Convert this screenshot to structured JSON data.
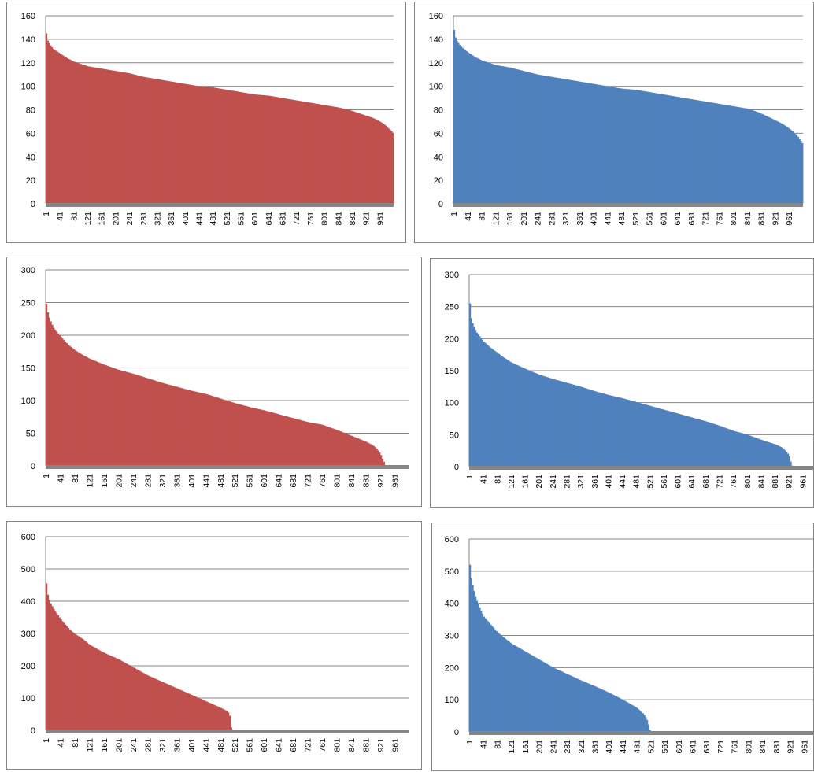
{
  "chart_data": [
    {
      "type": "bar",
      "color": "#c0504d",
      "x_tick_labels": [
        "1",
        "41",
        "81",
        "121",
        "161",
        "201",
        "241",
        "281",
        "321",
        "361",
        "401",
        "441",
        "481",
        "521",
        "561",
        "601",
        "641",
        "681",
        "721",
        "761",
        "801",
        "841",
        "881",
        "921",
        "961"
      ],
      "x_range": [
        1,
        1000
      ],
      "ylim": [
        0,
        160
      ],
      "y_ticks": [
        0,
        20,
        40,
        60,
        80,
        100,
        120,
        140,
        160
      ],
      "grid": true,
      "curve": [
        [
          1,
          145
        ],
        [
          3,
          140
        ],
        [
          10,
          136
        ],
        [
          20,
          132
        ],
        [
          40,
          128
        ],
        [
          60,
          124
        ],
        [
          80,
          121
        ],
        [
          120,
          117
        ],
        [
          160,
          115
        ],
        [
          200,
          113
        ],
        [
          240,
          111
        ],
        [
          280,
          108
        ],
        [
          320,
          106
        ],
        [
          360,
          104
        ],
        [
          400,
          102
        ],
        [
          440,
          100
        ],
        [
          480,
          99
        ],
        [
          520,
          97
        ],
        [
          560,
          95
        ],
        [
          600,
          93
        ],
        [
          640,
          92
        ],
        [
          680,
          90
        ],
        [
          720,
          88
        ],
        [
          760,
          86
        ],
        [
          800,
          84
        ],
        [
          840,
          82
        ],
        [
          870,
          80
        ],
        [
          900,
          77
        ],
        [
          920,
          75
        ],
        [
          940,
          73
        ],
        [
          960,
          70
        ],
        [
          975,
          67
        ],
        [
          985,
          64
        ],
        [
          992,
          62
        ],
        [
          998,
          60
        ],
        [
          1000,
          60
        ]
      ]
    },
    {
      "type": "bar",
      "color": "#4f81bd",
      "x_tick_labels": [
        "1",
        "41",
        "81",
        "121",
        "161",
        "201",
        "241",
        "281",
        "321",
        "361",
        "401",
        "441",
        "481",
        "521",
        "561",
        "601",
        "641",
        "681",
        "721",
        "761",
        "801",
        "841",
        "881",
        "921",
        "961"
      ],
      "x_range": [
        1,
        1000
      ],
      "ylim": [
        0,
        160
      ],
      "y_ticks": [
        0,
        20,
        40,
        60,
        80,
        100,
        120,
        140,
        160
      ],
      "grid": true,
      "curve": [
        [
          1,
          148
        ],
        [
          3,
          143
        ],
        [
          10,
          138
        ],
        [
          20,
          134
        ],
        [
          40,
          129
        ],
        [
          60,
          125
        ],
        [
          80,
          122
        ],
        [
          120,
          118
        ],
        [
          160,
          116
        ],
        [
          200,
          113
        ],
        [
          240,
          110
        ],
        [
          280,
          108
        ],
        [
          320,
          106
        ],
        [
          360,
          104
        ],
        [
          400,
          102
        ],
        [
          440,
          100
        ],
        [
          480,
          98
        ],
        [
          520,
          97
        ],
        [
          560,
          95
        ],
        [
          600,
          93
        ],
        [
          640,
          91
        ],
        [
          680,
          89
        ],
        [
          720,
          87
        ],
        [
          760,
          85
        ],
        [
          800,
          83
        ],
        [
          840,
          81
        ],
        [
          870,
          78
        ],
        [
          900,
          74
        ],
        [
          920,
          71
        ],
        [
          940,
          68
        ],
        [
          960,
          64
        ],
        [
          975,
          60
        ],
        [
          985,
          57
        ],
        [
          992,
          54
        ],
        [
          998,
          51
        ],
        [
          1000,
          51
        ]
      ]
    },
    {
      "type": "bar",
      "color": "#c0504d",
      "x_tick_labels": [
        "1",
        "41",
        "81",
        "121",
        "161",
        "201",
        "241",
        "281",
        "321",
        "361",
        "401",
        "441",
        "481",
        "521",
        "561",
        "601",
        "641",
        "681",
        "721",
        "761",
        "801",
        "841",
        "881",
        "921",
        "961"
      ],
      "x_range": [
        1,
        1000
      ],
      "ylim": [
        0,
        300
      ],
      "y_ticks": [
        0,
        50,
        100,
        150,
        200,
        250,
        300
      ],
      "grid": true,
      "curve": [
        [
          1,
          248
        ],
        [
          5,
          235
        ],
        [
          10,
          225
        ],
        [
          20,
          212
        ],
        [
          40,
          198
        ],
        [
          60,
          186
        ],
        [
          80,
          177
        ],
        [
          100,
          170
        ],
        [
          120,
          164
        ],
        [
          160,
          155
        ],
        [
          200,
          147
        ],
        [
          240,
          141
        ],
        [
          280,
          134
        ],
        [
          320,
          127
        ],
        [
          360,
          121
        ],
        [
          400,
          115
        ],
        [
          440,
          110
        ],
        [
          480,
          103
        ],
        [
          520,
          96
        ],
        [
          560,
          90
        ],
        [
          600,
          85
        ],
        [
          640,
          79
        ],
        [
          680,
          73
        ],
        [
          720,
          67
        ],
        [
          760,
          63
        ],
        [
          800,
          55
        ],
        [
          840,
          46
        ],
        [
          880,
          37
        ],
        [
          900,
          31
        ],
        [
          910,
          26
        ],
        [
          920,
          18
        ],
        [
          925,
          11
        ],
        [
          930,
          5
        ],
        [
          932,
          0
        ]
      ]
    },
    {
      "type": "bar",
      "color": "#4f81bd",
      "x_tick_labels": [
        "1",
        "41",
        "81",
        "121",
        "161",
        "201",
        "241",
        "281",
        "321",
        "361",
        "401",
        "441",
        "481",
        "521",
        "561",
        "601",
        "641",
        "681",
        "721",
        "761",
        "801",
        "841",
        "881",
        "921",
        "961"
      ],
      "x_range": [
        1,
        1000
      ],
      "ylim": [
        0,
        300
      ],
      "y_ticks": [
        0,
        50,
        100,
        150,
        200,
        250,
        300
      ],
      "grid": true,
      "curve": [
        [
          1,
          255
        ],
        [
          5,
          232
        ],
        [
          10,
          222
        ],
        [
          20,
          210
        ],
        [
          40,
          196
        ],
        [
          60,
          186
        ],
        [
          80,
          178
        ],
        [
          100,
          170
        ],
        [
          120,
          163
        ],
        [
          160,
          153
        ],
        [
          200,
          144
        ],
        [
          240,
          137
        ],
        [
          280,
          131
        ],
        [
          320,
          125
        ],
        [
          360,
          118
        ],
        [
          400,
          112
        ],
        [
          440,
          107
        ],
        [
          480,
          101
        ],
        [
          520,
          95
        ],
        [
          560,
          89
        ],
        [
          600,
          83
        ],
        [
          640,
          77
        ],
        [
          680,
          71
        ],
        [
          720,
          64
        ],
        [
          760,
          56
        ],
        [
          800,
          50
        ],
        [
          840,
          42
        ],
        [
          880,
          35
        ],
        [
          900,
          30
        ],
        [
          910,
          25
        ],
        [
          920,
          18
        ],
        [
          925,
          8
        ],
        [
          930,
          0
        ]
      ]
    },
    {
      "type": "bar",
      "color": "#c0504d",
      "x_tick_labels": [
        "1",
        "41",
        "81",
        "121",
        "161",
        "201",
        "241",
        "281",
        "321",
        "361",
        "401",
        "441",
        "481",
        "521",
        "561",
        "601",
        "641",
        "681",
        "721",
        "761",
        "801",
        "841",
        "881",
        "921",
        "961"
      ],
      "x_range": [
        1,
        1000
      ],
      "ylim": [
        0,
        600
      ],
      "y_ticks": [
        0,
        100,
        200,
        300,
        400,
        500,
        600
      ],
      "grid": true,
      "curve": [
        [
          1,
          455
        ],
        [
          5,
          420
        ],
        [
          10,
          400
        ],
        [
          20,
          378
        ],
        [
          40,
          345
        ],
        [
          60,
          318
        ],
        [
          80,
          298
        ],
        [
          100,
          284
        ],
        [
          120,
          265
        ],
        [
          160,
          240
        ],
        [
          200,
          220
        ],
        [
          240,
          195
        ],
        [
          280,
          170
        ],
        [
          320,
          150
        ],
        [
          360,
          130
        ],
        [
          400,
          110
        ],
        [
          440,
          90
        ],
        [
          480,
          70
        ],
        [
          500,
          58
        ],
        [
          505,
          45
        ],
        [
          510,
          0
        ]
      ]
    },
    {
      "type": "bar",
      "color": "#4f81bd",
      "x_tick_labels": [
        "1",
        "41",
        "81",
        "121",
        "161",
        "201",
        "241",
        "281",
        "321",
        "361",
        "401",
        "441",
        "481",
        "521",
        "561",
        "601",
        "641",
        "681",
        "721",
        "761",
        "801",
        "841",
        "881",
        "921",
        "961"
      ],
      "x_range": [
        1,
        1000
      ],
      "ylim": [
        0,
        600
      ],
      "y_ticks": [
        0,
        100,
        200,
        300,
        400,
        500,
        600
      ],
      "grid": true,
      "curve": [
        [
          1,
          520
        ],
        [
          3,
          490
        ],
        [
          10,
          450
        ],
        [
          20,
          410
        ],
        [
          40,
          360
        ],
        [
          60,
          335
        ],
        [
          80,
          310
        ],
        [
          100,
          292
        ],
        [
          120,
          275
        ],
        [
          160,
          250
        ],
        [
          200,
          225
        ],
        [
          240,
          200
        ],
        [
          280,
          180
        ],
        [
          320,
          160
        ],
        [
          360,
          142
        ],
        [
          400,
          122
        ],
        [
          440,
          100
        ],
        [
          480,
          75
        ],
        [
          500,
          55
        ],
        [
          510,
          35
        ],
        [
          515,
          15
        ],
        [
          518,
          0
        ]
      ]
    }
  ]
}
